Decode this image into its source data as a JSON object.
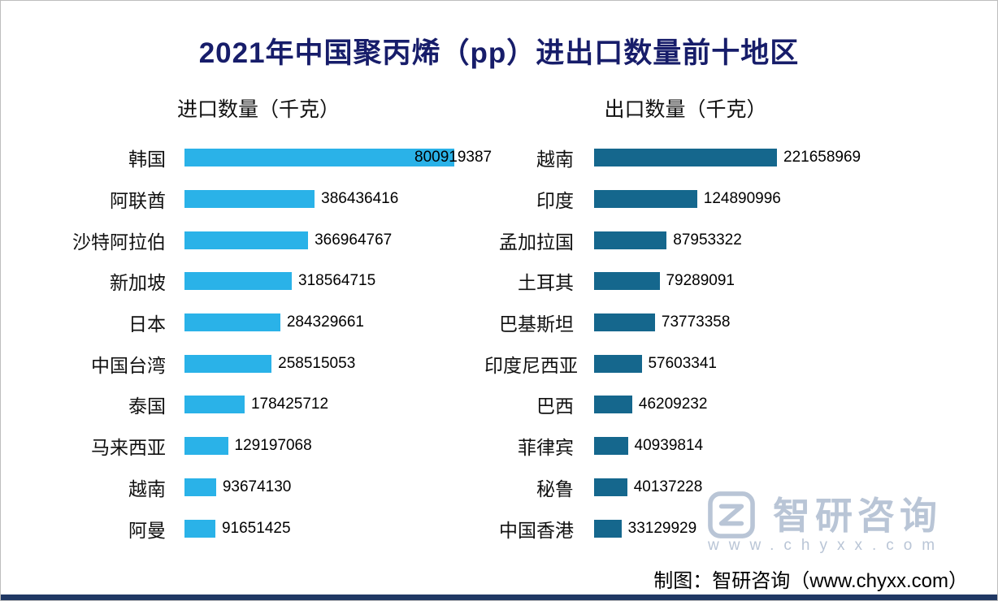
{
  "page": {
    "title": "2021年中国聚丙烯（pp）进出口数量前十地区",
    "footer": "制图：智研咨询（www.chyxx.com）",
    "watermark_brand": "智研咨询",
    "watermark_url": "www.chyxx.com",
    "accent_line_color": "#203864",
    "watermark_color": "#b9c5d6"
  },
  "chart_data": [
    {
      "type": "bar",
      "orientation": "horizontal",
      "title": "进口数量（千克）",
      "categories": [
        "韩国",
        "阿联酋",
        "沙特阿拉伯",
        "新加坡",
        "日本",
        "中国台湾",
        "泰国",
        "马来西亚",
        "越南",
        "阿曼"
      ],
      "values": [
        800919387,
        386436416,
        366964767,
        318564715,
        284329661,
        258515053,
        178425712,
        129197068,
        93674130,
        91651425
      ],
      "bar_color": "#2ab2e8",
      "value_labels": true,
      "sorted": "descending",
      "legend": "none",
      "grid": false
    },
    {
      "type": "bar",
      "orientation": "horizontal",
      "title": "出口数量（千克）",
      "categories": [
        "越南",
        "印度",
        "孟加拉国",
        "土耳其",
        "巴基斯坦",
        "印度尼西亚",
        "巴西",
        "菲律宾",
        "秘鲁",
        "中国香港"
      ],
      "values": [
        221658969,
        124890996,
        87953322,
        79289091,
        73773358,
        57603341,
        46209232,
        40939814,
        40137228,
        33129929
      ],
      "bar_color": "#15678d",
      "value_labels": true,
      "sorted": "descending",
      "legend": "none",
      "grid": false
    }
  ]
}
